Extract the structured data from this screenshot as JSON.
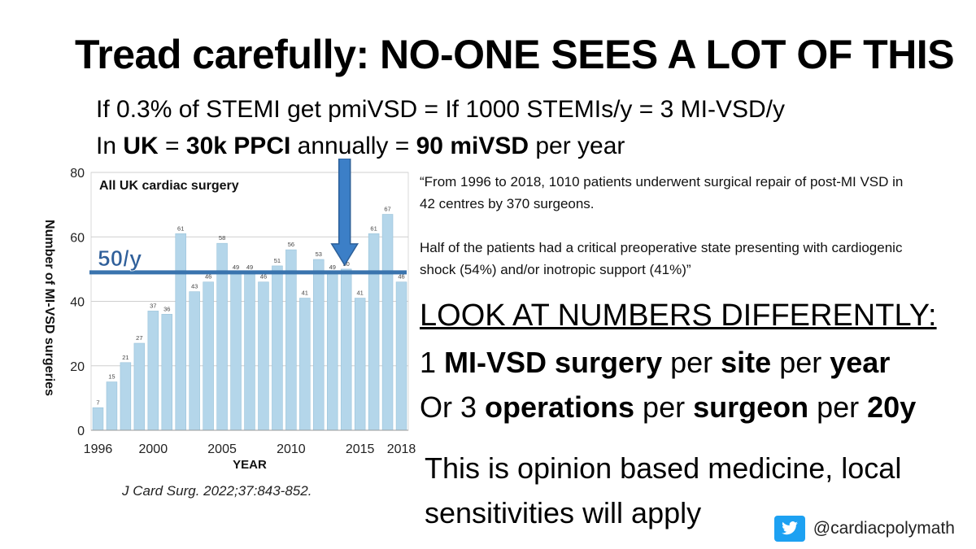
{
  "slide": {
    "title": "Tread carefully: NO-ONE SEES A LOT OF THIS",
    "line1": "If 0.3% of STEMI get pmiVSD = If 1000 STEMIs/y = 3 MI-VSD/y",
    "line2": {
      "t1": "In ",
      "b1": "UK",
      "t2": " = ",
      "b2": "30k PPCI",
      "t3": " annually = ",
      "b3": "90 miVSD",
      "t4": " per year"
    },
    "quote_p1": "“From 1996 to 2018, 1010 patients underwent surgical repair of post-MI VSD in 42 centres by 370 surgeons.",
    "quote_p2": "Half of the patients had a critical preoperative state presenting with cardiogenic shock (54%) and/or inotropic support (41%)”",
    "look_heading": "LOOK AT NUMBERS DIFFERENTLY:",
    "per_site": {
      "t1": "1 ",
      "b1": "MI-VSD surgery",
      "t2": " per ",
      "b2": "site",
      "t3": " per ",
      "b3": "year"
    },
    "per_surgeon": {
      "t1": "Or 3 ",
      "b1": "operations",
      "t2": " per ",
      "b2": "surgeon",
      "t3": " per ",
      "b3": "20y"
    },
    "opinion": "This is opinion based medicine, local sensitivities will apply",
    "citation": "J Card Surg. 2022;37:843-852.",
    "twitter_handle": "@cardiacpolymath",
    "twitter_icon": "twitter-bird-icon"
  },
  "chart_data": {
    "type": "bar",
    "title": "All UK cardiac surgery",
    "xlabel": "YEAR",
    "ylabel": "Number of MI-VSD surgeries",
    "ylim": [
      0,
      80
    ],
    "yticks": [
      "0",
      "20",
      "40",
      "60",
      "80"
    ],
    "x_tick_labels": [
      "1996",
      "2000",
      "2005",
      "2010",
      "2015",
      "2018"
    ],
    "x_tick_years": [
      1996,
      2000,
      2005,
      2010,
      2015,
      2018
    ],
    "categories": [
      1996,
      1997,
      1998,
      1999,
      2000,
      2001,
      2002,
      2003,
      2004,
      2005,
      2006,
      2007,
      2008,
      2009,
      2010,
      2011,
      2012,
      2013,
      2014,
      2015,
      2016,
      2017,
      2018
    ],
    "values": [
      7,
      15,
      21,
      27,
      37,
      36,
      61,
      43,
      46,
      58,
      49,
      49,
      46,
      51,
      56,
      41,
      53,
      49,
      50,
      41,
      61,
      67,
      46
    ],
    "data_labels": [
      "7",
      "15",
      "21",
      "27",
      "37",
      "36",
      "61",
      "43",
      "46",
      "58",
      "49",
      "49",
      "46",
      "51",
      "56",
      "41",
      "53",
      "49",
      "50",
      "41",
      "61",
      "67",
      "46"
    ],
    "reference_line": {
      "value": 49,
      "label": "50/y"
    },
    "arrow_year": 2014,
    "colors": {
      "bar": "#b4d6ea",
      "bar_stroke": "#9ac3da",
      "grid": "#cfcfcf",
      "reference_line": "#3a74ae",
      "reference_label": "#2f5f9a",
      "arrow": "#3c7fc7"
    }
  }
}
